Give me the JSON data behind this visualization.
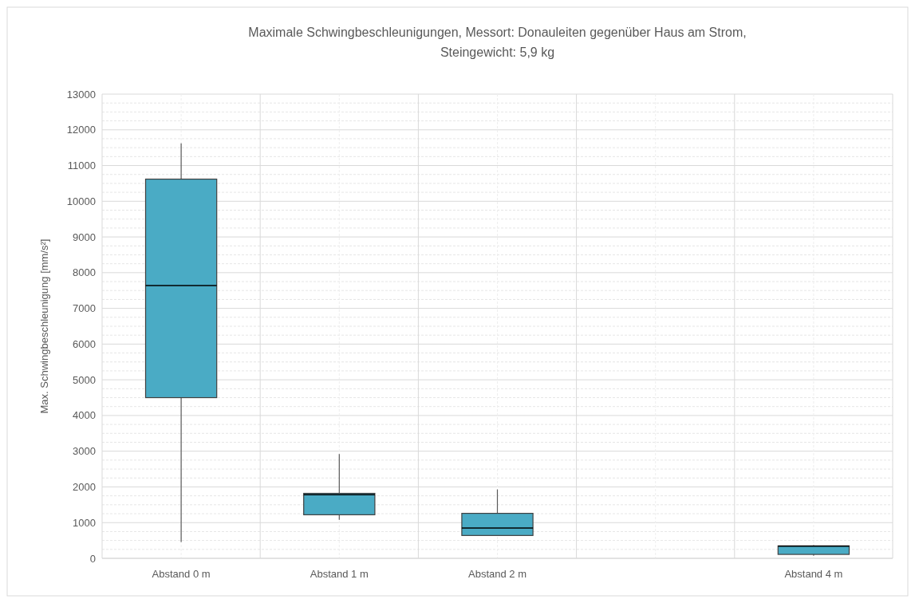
{
  "chart_data": {
    "type": "box",
    "title": "Maximale Schwingbeschleunigungen, Messort: Donauleiten gegenüber Haus am Strom,\nSteingewicht: 5,9 kg",
    "ylabel": "Max. Schwingbeschleunigung [mm/s²]",
    "categories": [
      "Abstand 0 m",
      "Abstand 1 m",
      "Abstand 2 m",
      null,
      "Abstand 4 m"
    ],
    "series": [
      {
        "color": "#4aabc5",
        "boxes": [
          {
            "low": 460,
            "q1": 4500,
            "median": 7640,
            "q3": 10620,
            "high": 11620
          },
          {
            "low": 1080,
            "q1": 1220,
            "median": 1780,
            "q3": 1820,
            "high": 2920
          },
          {
            "low": 640,
            "q1": 640,
            "median": 850,
            "q3": 1260,
            "high": 1930
          },
          null,
          {
            "low": 70,
            "q1": 110,
            "median": 340,
            "q3": 350,
            "high": 370
          }
        ]
      }
    ],
    "ylim": [
      0,
      13000
    ],
    "yticks": [
      0,
      1000,
      2000,
      3000,
      4000,
      5000,
      6000,
      7000,
      8000,
      9000,
      10000,
      11000,
      12000,
      13000
    ],
    "grid": true
  }
}
